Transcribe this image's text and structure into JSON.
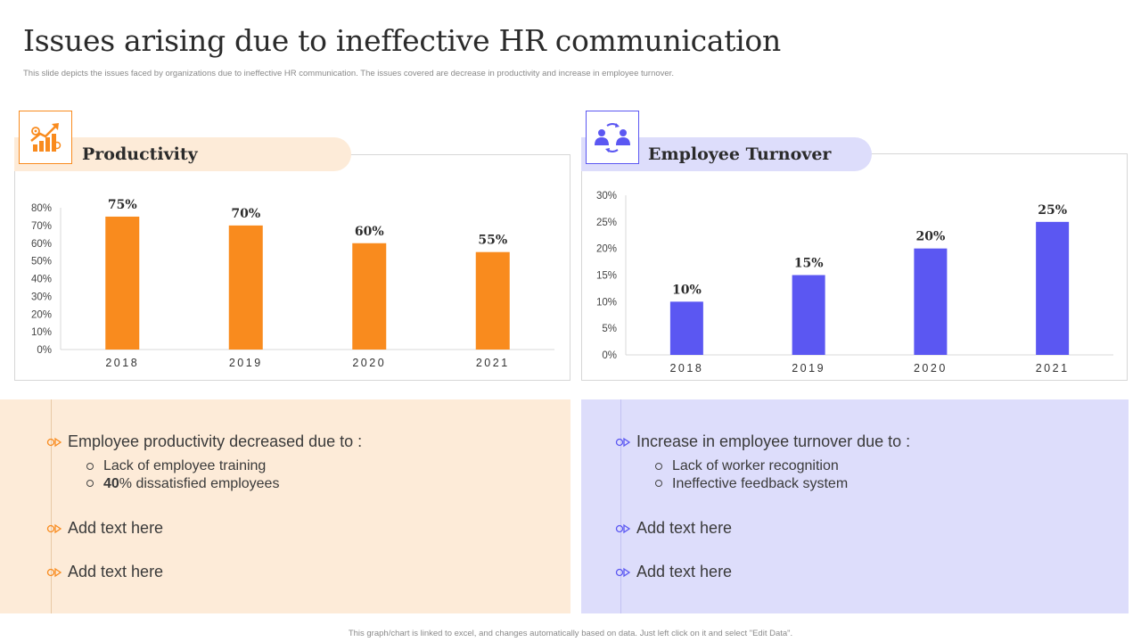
{
  "header": {
    "title": "Issues arising due to ineffective HR communication",
    "subtitle": "This slide depicts the issues faced by organizations due to ineffective HR communication. The issues covered are decrease in productivity and increase in employee turnover."
  },
  "colors": {
    "orange": "#F98B1E",
    "orange_light": "#FDEBD8",
    "purple": "#5B57F2",
    "purple_light": "#DDDDFB"
  },
  "left_panel": {
    "heading": "Productivity",
    "icon": "growth-chart-icon",
    "main_bullet": "Employee productivity decreased due to :",
    "sub_items": [
      {
        "bold": "",
        "text": "Lack of employee training"
      },
      {
        "bold": "40",
        "text": "% dissatisfied employees"
      }
    ],
    "extra_bullets": [
      "Add text here",
      "Add text here"
    ]
  },
  "right_panel": {
    "heading": "Employee Turnover",
    "icon": "people-exchange-icon",
    "main_bullet": "Increase in employee turnover due to :",
    "sub_items": [
      {
        "bold": "",
        "text": "Lack of worker recognition"
      },
      {
        "bold": "",
        "text": "Ineffective  feedback system"
      }
    ],
    "extra_bullets": [
      "Add text here",
      "Add text here"
    ]
  },
  "footer": "This graph/chart is linked to excel, and changes automatically based on data. Just left click on it and select \"Edit Data\".",
  "chart_data": [
    {
      "type": "bar",
      "title": "Productivity",
      "categories": [
        "2018",
        "2019",
        "2020",
        "2021"
      ],
      "values": [
        75,
        70,
        60,
        55
      ],
      "data_labels": [
        "75%",
        "70%",
        "60%",
        "55%"
      ],
      "y_ticks": [
        "0%",
        "10%",
        "20%",
        "30%",
        "40%",
        "50%",
        "60%",
        "70%",
        "80%"
      ],
      "ylim": [
        0,
        80
      ],
      "color": "#F98B1E",
      "grid": false
    },
    {
      "type": "bar",
      "title": "Employee Turnover",
      "categories": [
        "2018",
        "2019",
        "2020",
        "2021"
      ],
      "values": [
        10,
        15,
        20,
        25
      ],
      "data_labels": [
        "10%",
        "15%",
        "20%",
        "25%"
      ],
      "y_ticks": [
        "0%",
        "5%",
        "10%",
        "15%",
        "20%",
        "25%",
        "30%"
      ],
      "ylim": [
        0,
        30
      ],
      "color": "#5B57F2",
      "grid": false
    }
  ]
}
